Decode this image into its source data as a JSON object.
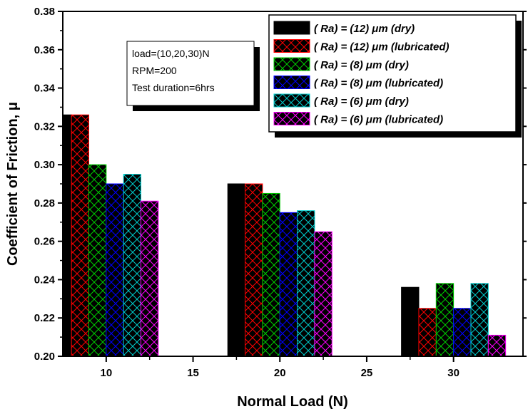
{
  "chart_data": {
    "type": "bar",
    "title": "",
    "xlabel": "Normal Load  (N)",
    "ylabel": "Coefficient  of  Friction,  μ",
    "xlim": [
      7.5,
      34
    ],
    "ylim": [
      0.2,
      0.38
    ],
    "xticks": [
      "10",
      "15",
      "20",
      "25",
      "30"
    ],
    "yticks": [
      "0.20",
      "0.22",
      "0.24",
      "0.26",
      "0.28",
      "0.30",
      "0.32",
      "0.34",
      "0.36",
      "0.38"
    ],
    "grid": false,
    "legend_position": "top-right",
    "categories": [
      10,
      20,
      30
    ],
    "series": [
      {
        "name": "( Ra) =  (12)  μm (dry)",
        "color": "#000000",
        "hatch": false,
        "x": [
          7.5,
          17.5,
          27.5
        ],
        "values": [
          0.326,
          0.29,
          0.236
        ]
      },
      {
        "name": "( Ra) =  (12)  μm (lubricated)",
        "color": "#ff0000",
        "hatch": true,
        "x": [
          8.5,
          18.5,
          28.5
        ],
        "values": [
          0.326,
          0.29,
          0.225
        ]
      },
      {
        "name": "( Ra) =   (8)  μm (dry)",
        "color": "#00cc00",
        "hatch": true,
        "x": [
          9.5,
          19.5,
          29.5
        ],
        "values": [
          0.3,
          0.285,
          0.238
        ]
      },
      {
        "name": "( Ra) =   (8)  μm (lubricated)",
        "color": "#0000ff",
        "hatch": true,
        "x": [
          10.5,
          20.5,
          30.5
        ],
        "values": [
          0.29,
          0.275,
          0.225
        ]
      },
      {
        "name": "( Ra) =   (6)  μm (dry)",
        "color": "#00cccc",
        "hatch": true,
        "x": [
          11.5,
          21.5,
          31.5
        ],
        "values": [
          0.295,
          0.276,
          0.238
        ]
      },
      {
        "name": "( Ra) =   (6)  μm (lubricated)",
        "color": "#ff00ff",
        "hatch": true,
        "x": [
          12.5,
          22.5,
          32.5
        ],
        "values": [
          0.281,
          0.265,
          0.211
        ]
      }
    ],
    "annotation": [
      "load=(10,20,30)N",
      "RPM=200",
      "Test duration=6hrs"
    ]
  }
}
